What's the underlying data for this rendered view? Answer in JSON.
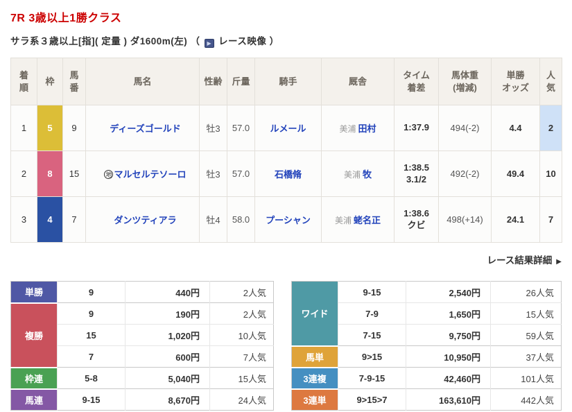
{
  "header": {
    "title": "7R 3歳以上1勝クラス",
    "conditions": "サラ系３歳以上[指]( 定量 ) ダ1600m(左)",
    "paren_open": "（",
    "video_label": "レース映像",
    "paren_close": "）"
  },
  "results_table": {
    "headers": [
      "着\n順",
      "枠",
      "馬\n番",
      "馬名",
      "性齢",
      "斤量",
      "騎手",
      "厩舎",
      "タイム\n着差",
      "馬体重\n(増減)",
      "単勝\nオッズ",
      "人\n気"
    ],
    "rows": [
      {
        "finish": "1",
        "frame": "5",
        "frame_color": "#dcbe37",
        "horse_no": "9",
        "horse_mark": "",
        "horse_name": "ディーズゴールド",
        "sex_age": "牡3",
        "weight": "57.0",
        "jockey": "ルメール",
        "stable_region": "美浦",
        "stable": "田村",
        "time": "1:37.9",
        "margin": "",
        "body_weight": "494(-2)",
        "odds": "4.4",
        "popularity": "2"
      },
      {
        "finish": "2",
        "frame": "8",
        "frame_color": "#d9637f",
        "horse_no": "15",
        "horse_mark": "地",
        "horse_name": "マルセルテソーロ",
        "sex_age": "牡3",
        "weight": "57.0",
        "jockey": "石橋脩",
        "stable_region": "美浦",
        "stable": "牧",
        "time": "1:38.5",
        "margin": "3.1/2",
        "body_weight": "492(-2)",
        "odds": "49.4",
        "popularity": "10"
      },
      {
        "finish": "3",
        "frame": "4",
        "frame_color": "#2a51a3",
        "horse_no": "7",
        "horse_mark": "",
        "horse_name": "ダンツティアラ",
        "sex_age": "牡4",
        "weight": "58.0",
        "jockey": "プーシャン",
        "stable_region": "美浦",
        "stable": "蛯名正",
        "time": "1:38.6",
        "margin": "クビ",
        "body_weight": "498(+14)",
        "odds": "24.1",
        "popularity": "7"
      }
    ],
    "popularity_highlight_color": "#cfe1f7"
  },
  "detail_link": {
    "label": "レース結果詳細",
    "arrow": "▶"
  },
  "payouts": {
    "left": [
      {
        "label": "単勝",
        "color": "#4f58a5",
        "rows": [
          {
            "combo": "9",
            "amount": "440円",
            "pop": "2人気"
          }
        ]
      },
      {
        "label": "複勝",
        "color": "#c9515c",
        "rows": [
          {
            "combo": "9",
            "amount": "190円",
            "pop": "2人気"
          },
          {
            "combo": "15",
            "amount": "1,020円",
            "pop": "10人気"
          },
          {
            "combo": "7",
            "amount": "600円",
            "pop": "7人気"
          }
        ]
      },
      {
        "label": "枠連",
        "color": "#4aa153",
        "rows": [
          {
            "combo": "5-8",
            "amount": "5,040円",
            "pop": "15人気"
          }
        ]
      },
      {
        "label": "馬連",
        "color": "#8458a5",
        "rows": [
          {
            "combo": "9-15",
            "amount": "8,670円",
            "pop": "24人気"
          }
        ]
      }
    ],
    "right": [
      {
        "label": "ワイド",
        "color": "#4f9aa5",
        "rows": [
          {
            "combo": "9-15",
            "amount": "2,540円",
            "pop": "26人気"
          },
          {
            "combo": "7-9",
            "amount": "1,650円",
            "pop": "15人気"
          },
          {
            "combo": "7-15",
            "amount": "9,750円",
            "pop": "59人気"
          }
        ]
      },
      {
        "label": "馬単",
        "color": "#dfa339",
        "rows": [
          {
            "combo": "9>15",
            "amount": "10,950円",
            "pop": "37人気"
          }
        ]
      },
      {
        "label": "3連複",
        "color": "#458fc1",
        "rows": [
          {
            "combo": "7-9-15",
            "amount": "42,460円",
            "pop": "101人気"
          }
        ]
      },
      {
        "label": "3連単",
        "color": "#dd7940",
        "rows": [
          {
            "combo": "9>15>7",
            "amount": "163,610円",
            "pop": "442人気"
          }
        ]
      }
    ]
  }
}
